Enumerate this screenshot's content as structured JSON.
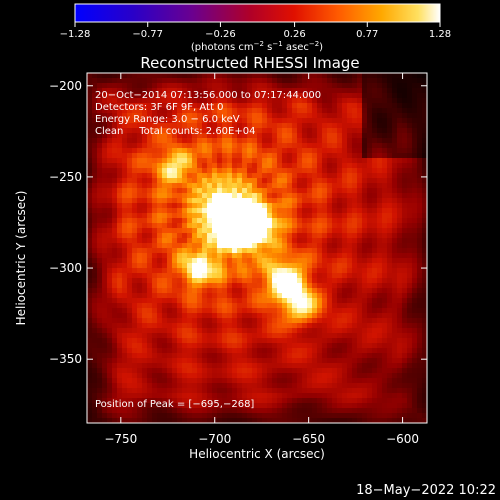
{
  "chart_data": {
    "type": "heatmap",
    "title": "Reconstructed RHESSI Image",
    "xlabel": "Heliocentric X (arcsec)",
    "ylabel": "Heliocentric Y (arcsec)",
    "xlim": [
      -768,
      -587
    ],
    "ylim": [
      -385,
      -193
    ],
    "x_ticks": [
      -750,
      -700,
      -650,
      -600
    ],
    "y_ticks": [
      -200,
      -250,
      -300,
      -350
    ],
    "x_tick_labels": [
      "−750",
      "−700",
      "−650",
      "−600"
    ],
    "y_tick_labels": [
      "−200",
      "−250",
      "−300",
      "−350"
    ],
    "colorbar": {
      "range": [
        -1.28,
        1.28
      ],
      "ticks": [
        -1.28,
        -0.77,
        -0.26,
        0.26,
        0.77,
        1.28
      ],
      "tick_labels": [
        "−1.28",
        "−0.77",
        "−0.26",
        "0.26",
        "0.77",
        "1.28"
      ],
      "label_main": "(photons cm",
      "label_exp1": "−2",
      "label_mid": " s",
      "label_exp2": "−1",
      "label_mid2": " asec",
      "label_exp3": "−2",
      "label_end": ")",
      "colormap": "RHESSI red-temperature (black-blue-purple-red-orange-yellow-white)"
    },
    "info_lines": [
      "20−Oct−2014 07:13:56.000 to 07:17:44.000",
      "Detectors: 3F 6F 9F, Att 0",
      "Energy Range: 3.0 − 6.0 keV",
      "Clean     Total counts: 2.60E+04"
    ],
    "peak_label": "Position of Peak = [−695,−268]",
    "peak": [
      -695,
      -268
    ],
    "sources": [
      {
        "x": -695,
        "y": -268,
        "amp": 1.0
      },
      {
        "x": -678,
        "y": -276,
        "amp": 0.92
      },
      {
        "x": -688,
        "y": -281,
        "amp": 0.75
      },
      {
        "x": -663,
        "y": -306,
        "amp": 0.8
      },
      {
        "x": -655,
        "y": -320,
        "amp": 0.7
      },
      {
        "x": -708,
        "y": -300,
        "amp": 0.62
      },
      {
        "x": -722,
        "y": -244,
        "amp": 0.45
      }
    ],
    "background_level": 0.35
  },
  "footer_date": "18−May−2022 10:22"
}
